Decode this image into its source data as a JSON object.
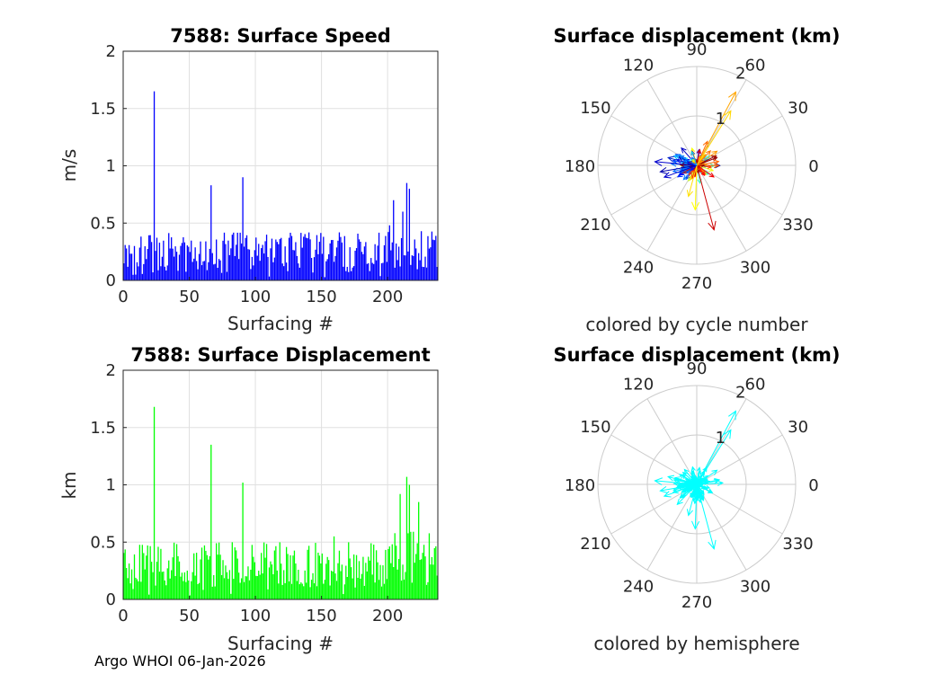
{
  "footer": "Argo WHOI 06-Jan-2026",
  "colors": {
    "speed_bars": "#0000ff",
    "displacement_bars": "#00ff00",
    "hemisphere_arrows": "#00ffff",
    "grid": "#e0e0e0",
    "axis": "#262626"
  },
  "chart_data": [
    {
      "type": "bar",
      "title": "7588: Surface Speed",
      "xlabel": "Surfacing #",
      "ylabel": "m/s",
      "xlim": [
        0,
        238
      ],
      "ylim": [
        0,
        2
      ],
      "xticks": [
        0,
        50,
        100,
        150,
        200
      ],
      "yticks": [
        0,
        0.5,
        1,
        1.5,
        2
      ],
      "ytick_labels": [
        "0",
        "0.5",
        "1",
        "1.5",
        "2"
      ],
      "grid": true,
      "peaks": [
        {
          "x": 24,
          "y": 1.65
        },
        {
          "x": 67,
          "y": 0.83
        },
        {
          "x": 91,
          "y": 0.9
        },
        {
          "x": 215,
          "y": 0.85
        },
        {
          "x": 217,
          "y": 0.8
        },
        {
          "x": 212,
          "y": 0.6
        },
        {
          "x": 205,
          "y": 0.7
        }
      ],
      "typical_range": [
        0.08,
        0.42
      ],
      "n_bars": 238
    },
    {
      "type": "bar",
      "title": "7588: Surface Displacement",
      "xlabel": "Surfacing #",
      "ylabel": "km",
      "xlim": [
        0,
        238
      ],
      "ylim": [
        0,
        2
      ],
      "xticks": [
        0,
        50,
        100,
        150,
        200
      ],
      "yticks": [
        0,
        0.5,
        1,
        1.5,
        2
      ],
      "ytick_labels": [
        "0",
        "0.5",
        "1",
        "1.5",
        "2"
      ],
      "grid": true,
      "peaks": [
        {
          "x": 24,
          "y": 1.68
        },
        {
          "x": 67,
          "y": 1.35
        },
        {
          "x": 91,
          "y": 1.02
        },
        {
          "x": 215,
          "y": 1.07
        },
        {
          "x": 210,
          "y": 0.92
        },
        {
          "x": 217,
          "y": 1.0
        },
        {
          "x": 160,
          "y": 0.55
        },
        {
          "x": 224,
          "y": 0.85
        }
      ],
      "typical_range": [
        0.1,
        0.5
      ],
      "n_bars": 238
    },
    {
      "type": "polar-arrows",
      "title": "Surface displacement (km)",
      "caption": "colored by cycle number",
      "rlim": [
        0,
        2
      ],
      "rtick_labels": [
        "1",
        "2"
      ],
      "theta_labels": [
        "0",
        "30",
        "60",
        "90",
        "120",
        "150",
        "180",
        "210",
        "240",
        "270",
        "300",
        "330"
      ],
      "coloring": "cycle",
      "highlight_arrows": [
        {
          "angle": 62,
          "r": 1.68,
          "color": "#ffa500"
        },
        {
          "angle": 58,
          "r": 1.3,
          "color": "#ffd700"
        },
        {
          "angle": 285,
          "r": 1.35,
          "color": "#cc0000"
        },
        {
          "angle": 268,
          "r": 0.9,
          "color": "#ffff00"
        },
        {
          "angle": 255,
          "r": 0.65,
          "color": "#ffe000"
        },
        {
          "angle": 175,
          "r": 0.85,
          "color": "#0000cc"
        },
        {
          "angle": 190,
          "r": 0.75,
          "color": "#0000aa"
        },
        {
          "angle": 165,
          "r": 0.6,
          "color": "#0022cc"
        },
        {
          "angle": 200,
          "r": 0.7,
          "color": "#0000cc"
        },
        {
          "angle": 150,
          "r": 0.4,
          "color": "#0088ff"
        },
        {
          "angle": 10,
          "r": 0.45,
          "color": "#ff6600"
        },
        {
          "angle": 35,
          "r": 0.5,
          "color": "#ff9900"
        },
        {
          "angle": 110,
          "r": 0.3,
          "color": "#00ccff"
        }
      ]
    },
    {
      "type": "polar-arrows",
      "title": "Surface displacement (km)",
      "caption": "colored by hemisphere",
      "rlim": [
        0,
        2
      ],
      "rtick_labels": [
        "1",
        "2"
      ],
      "theta_labels": [
        "0",
        "30",
        "60",
        "90",
        "120",
        "150",
        "180",
        "210",
        "240",
        "270",
        "300",
        "330"
      ],
      "coloring": "hemisphere",
      "highlight_arrows": [
        {
          "angle": 62,
          "r": 1.68
        },
        {
          "angle": 58,
          "r": 1.3
        },
        {
          "angle": 285,
          "r": 1.35
        },
        {
          "angle": 268,
          "r": 0.9
        },
        {
          "angle": 255,
          "r": 0.65
        },
        {
          "angle": 175,
          "r": 0.85
        },
        {
          "angle": 190,
          "r": 0.75
        },
        {
          "angle": 165,
          "r": 0.6
        },
        {
          "angle": 200,
          "r": 0.7
        },
        {
          "angle": 150,
          "r": 0.4
        },
        {
          "angle": 10,
          "r": 0.45
        },
        {
          "angle": 35,
          "r": 0.5
        },
        {
          "angle": 110,
          "r": 0.3
        }
      ]
    }
  ]
}
